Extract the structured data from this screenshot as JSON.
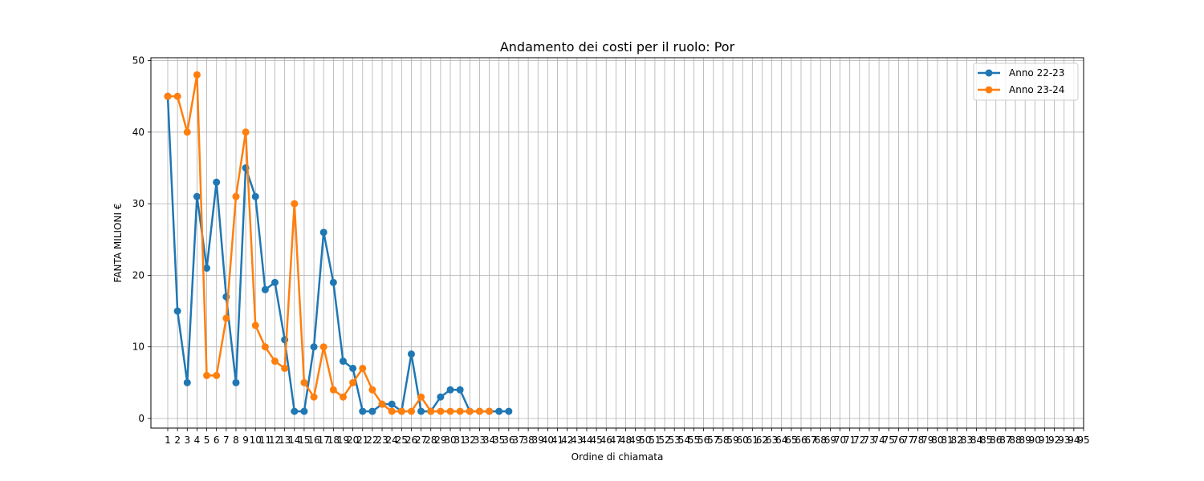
{
  "chart_data": {
    "type": "line",
    "title": "Andamento dei costi per il ruolo: Por",
    "xlabel": "Ordine di chiamata",
    "ylabel": "FANTA MILIONI €",
    "xlim": [
      1,
      95
    ],
    "ylim": [
      0,
      50
    ],
    "yticks": [
      0,
      10,
      20,
      30,
      40,
      50
    ],
    "grid": true,
    "legend_position": "top-right",
    "series": [
      {
        "name": "Anno 22-23",
        "color": "#1f77b4",
        "x": [
          1,
          2,
          3,
          4,
          5,
          6,
          7,
          8,
          9,
          10,
          11,
          12,
          13,
          14,
          15,
          16,
          17,
          18,
          19,
          20,
          21,
          22,
          23,
          24,
          25,
          26,
          27,
          28,
          29,
          30,
          31,
          32,
          33,
          34,
          35,
          36
        ],
        "values": [
          45,
          15,
          5,
          31,
          21,
          33,
          17,
          5,
          35,
          31,
          18,
          19,
          11,
          1,
          1,
          10,
          26,
          19,
          8,
          7,
          1,
          1,
          2,
          2,
          1,
          9,
          1,
          1,
          3,
          4,
          4,
          1,
          1,
          1,
          1,
          1
        ]
      },
      {
        "name": "Anno 23-24",
        "color": "#ff7f0e",
        "x": [
          1,
          2,
          3,
          4,
          5,
          6,
          7,
          8,
          9,
          10,
          11,
          12,
          13,
          14,
          15,
          16,
          17,
          18,
          19,
          20,
          21,
          22,
          23,
          24,
          25,
          26,
          27,
          28,
          29,
          30,
          31,
          32,
          33,
          34
        ],
        "values": [
          45,
          45,
          40,
          48,
          6,
          6,
          14,
          31,
          40,
          13,
          10,
          8,
          7,
          30,
          5,
          3,
          10,
          4,
          3,
          5,
          7,
          4,
          2,
          1,
          1,
          1,
          3,
          1,
          1,
          1,
          1,
          1,
          1,
          1
        ]
      }
    ]
  }
}
